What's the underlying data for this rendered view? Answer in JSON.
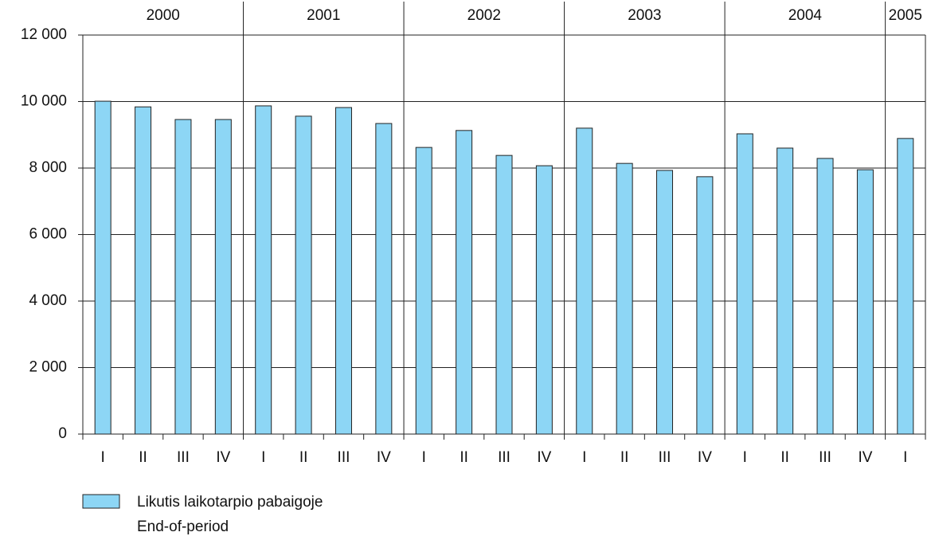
{
  "chart_data": {
    "type": "bar",
    "groups": [
      {
        "label": "2000",
        "categories": [
          "I",
          "II",
          "III",
          "IV"
        ],
        "values": [
          10010,
          9840,
          9460,
          9460
        ]
      },
      {
        "label": "2001",
        "categories": [
          "I",
          "II",
          "III",
          "IV"
        ],
        "values": [
          9870,
          9560,
          9820,
          9340
        ]
      },
      {
        "label": "2002",
        "categories": [
          "I",
          "II",
          "III",
          "IV"
        ],
        "values": [
          8620,
          9130,
          8380,
          8070
        ]
      },
      {
        "label": "2003",
        "categories": [
          "I",
          "II",
          "III",
          "IV"
        ],
        "values": [
          9200,
          8140,
          7930,
          7740
        ]
      },
      {
        "label": "2004",
        "categories": [
          "I",
          "II",
          "III",
          "IV"
        ],
        "values": [
          9030,
          8600,
          8290,
          7950
        ]
      },
      {
        "label": "2005",
        "categories": [
          "I"
        ],
        "values": [
          8890
        ]
      }
    ],
    "color": "#8dd6f5",
    "legend": [
      "Likutis laikotarpio pabaigoje",
      "End-of-period"
    ],
    "ylim": [
      0,
      12000
    ],
    "yticks": [
      0,
      {
        "value": 2000,
        "label": "2 000"
      },
      {
        "value": 4000,
        "label": "4 000"
      },
      {
        "value": 6000,
        "label": "6 000"
      },
      {
        "value": 8000,
        "label": "8 000"
      },
      {
        "value": 10000,
        "label": "10 000"
      },
      {
        "value": 12000,
        "label": "12 000"
      }
    ],
    "grid": true
  }
}
